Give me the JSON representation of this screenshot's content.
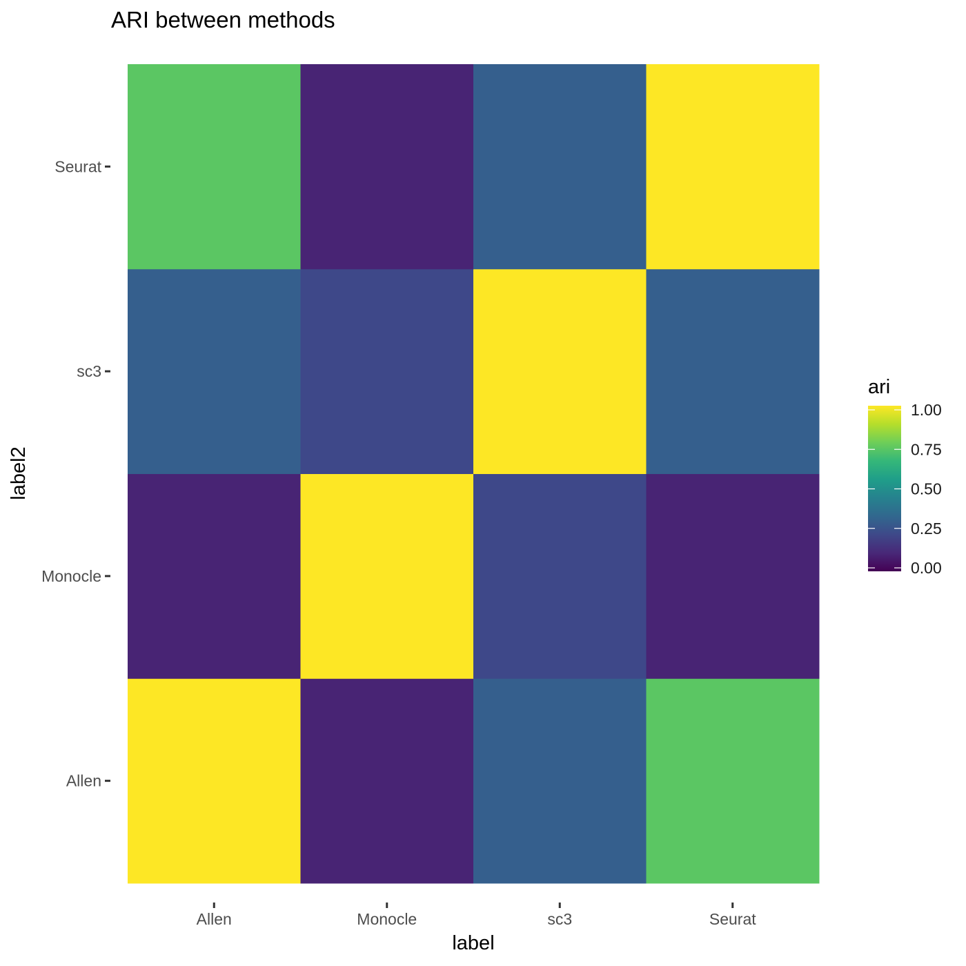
{
  "chart_data": {
    "type": "heatmap",
    "title": "ARI between methods",
    "xlabel": "label",
    "ylabel": "label2",
    "x_categories": [
      "Allen",
      "Monocle",
      "sc3",
      "Seurat"
    ],
    "y_categories": [
      "Allen",
      "Monocle",
      "sc3",
      "Seurat"
    ],
    "cells": [
      {
        "x": "Allen",
        "y": "Allen",
        "value": 1.0
      },
      {
        "x": "Monocle",
        "y": "Allen",
        "value": 0.1
      },
      {
        "x": "sc3",
        "y": "Allen",
        "value": 0.3
      },
      {
        "x": "Seurat",
        "y": "Allen",
        "value": 0.74
      },
      {
        "x": "Allen",
        "y": "Monocle",
        "value": 0.1
      },
      {
        "x": "Monocle",
        "y": "Monocle",
        "value": 1.0
      },
      {
        "x": "sc3",
        "y": "Monocle",
        "value": 0.22
      },
      {
        "x": "Seurat",
        "y": "Monocle",
        "value": 0.1
      },
      {
        "x": "Allen",
        "y": "sc3",
        "value": 0.3
      },
      {
        "x": "Monocle",
        "y": "sc3",
        "value": 0.22
      },
      {
        "x": "sc3",
        "y": "sc3",
        "value": 1.0
      },
      {
        "x": "Seurat",
        "y": "sc3",
        "value": 0.3
      },
      {
        "x": "Allen",
        "y": "Seurat",
        "value": 0.74
      },
      {
        "x": "Monocle",
        "y": "Seurat",
        "value": 0.1
      },
      {
        "x": "sc3",
        "y": "Seurat",
        "value": 0.3
      },
      {
        "x": "Seurat",
        "y": "Seurat",
        "value": 1.0
      }
    ],
    "legend": {
      "title": "ari",
      "ticks": [
        "0.00",
        "0.25",
        "0.50",
        "0.75",
        "1.00"
      ],
      "range": [
        0,
        1
      ],
      "colormap": "viridis",
      "placement": "right"
    },
    "grid": false,
    "colors": {
      "viridis_stops": [
        "#440154",
        "#482878",
        "#3e4989",
        "#31688e",
        "#26828e",
        "#1f9e89",
        "#35b779",
        "#6ece58",
        "#b5de2b",
        "#fde725"
      ]
    }
  }
}
